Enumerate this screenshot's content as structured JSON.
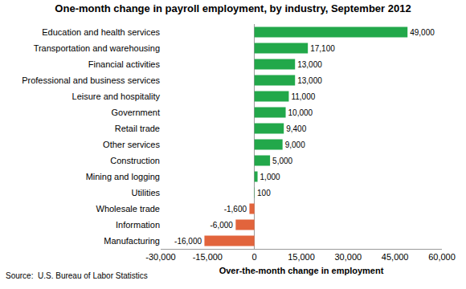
{
  "chart_data": {
    "type": "bar",
    "orientation": "horizontal",
    "title": "One-month change in payroll employment, by industry, September 2012",
    "x_label": "Over-the-month change in employment",
    "annotations": [
      "Source:  U.S. Bureau of Labor Statistics"
    ],
    "categories": [
      "Education and health services",
      "Transportation and warehousing",
      "Financial activities",
      "Professional and business services",
      "Leisure and hospitality",
      "Government",
      "Retail trade",
      "Other services",
      "Construction",
      "Mining and logging",
      "Utilities",
      "Wholesale trade",
      "Information",
      "Manufacturing"
    ],
    "values": [
      49000,
      17100,
      13000,
      13000,
      11000,
      10000,
      9400,
      9000,
      5000,
      1000,
      100,
      -1600,
      -6000,
      -16000
    ],
    "value_labels": [
      "49,000",
      "17,100",
      "13,000",
      "13,000",
      "11,000",
      "10,000",
      "9,400",
      "9,000",
      "5,000",
      "1,000",
      "100",
      "-1,600",
      "-6,000",
      "-16,000"
    ],
    "colors": [
      "#22a84a",
      "#22a84a",
      "#22a84a",
      "#22a84a",
      "#22a84a",
      "#22a84a",
      "#22a84a",
      "#22a84a",
      "#22a84a",
      "#22a84a",
      "#22a84a",
      "#e2643c",
      "#e2643c",
      "#e2643c"
    ],
    "data_labels": true,
    "grid": false,
    "xlim": [
      -30000,
      60000
    ],
    "xticks": [
      {
        "value": -30000,
        "label": "-30,000"
      },
      {
        "value": -15000,
        "label": "-15,000"
      },
      0,
      {
        "value": 15000,
        "label": "15,000"
      },
      {
        "value": 30000,
        "label": "30,000"
      },
      {
        "value": 45000,
        "label": "45,000"
      },
      {
        "value": 60000,
        "label": "60,000"
      }
    ]
  }
}
